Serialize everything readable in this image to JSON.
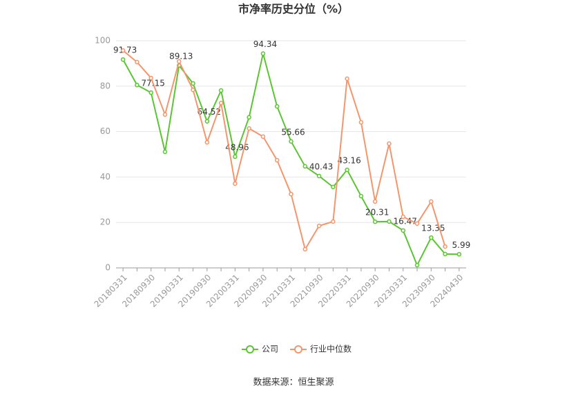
{
  "chart_data": {
    "type": "line",
    "title": "市净率历史分位（%）",
    "categories": [
      "20180331",
      null,
      "20180930",
      null,
      "20190331",
      null,
      "20190930",
      null,
      "20200331",
      null,
      "20200930",
      null,
      "20210331",
      null,
      "20210930",
      null,
      "20220331",
      null,
      "20220930",
      null,
      "20230331",
      null,
      "20230930",
      null,
      "20240430"
    ],
    "series": [
      {
        "name": "公司",
        "color": "#5ac531",
        "values": [
          91.73,
          80.5,
          77.15,
          51.1,
          89.13,
          81.2,
          64.52,
          78.1,
          48.96,
          66.3,
          94.34,
          71.1,
          55.66,
          44.7,
          40.43,
          35.6,
          43.16,
          31.6,
          20.31,
          20.4,
          16.47,
          1.2,
          13.35,
          6.1,
          5.99
        ],
        "value_labels": [
          "91.73",
          null,
          "77.15",
          null,
          "89.13",
          null,
          "64.52",
          null,
          "48.96",
          null,
          "94.34",
          null,
          "55.66",
          null,
          "40.43",
          null,
          "43.16",
          null,
          "20.31",
          null,
          "16.47",
          null,
          "13.35",
          null,
          "5.99"
        ]
      },
      {
        "name": "行业中位数",
        "color": "#f4956b",
        "values": [
          95.7,
          90.6,
          83.6,
          67.5,
          90.9,
          78.4,
          55.3,
          72.6,
          37.1,
          61.4,
          57.8,
          47.4,
          32.5,
          8.2,
          18.5,
          20.4,
          83.3,
          64.1,
          29.2,
          54.7,
          22.5,
          19.5,
          29.2,
          9.4,
          null
        ]
      }
    ],
    "ylim": [
      0,
      100
    ],
    "yticks": [
      0,
      20,
      40,
      60,
      80,
      100
    ],
    "grid": true,
    "legend": "bottom",
    "source": "数据来源：恒生聚源"
  }
}
